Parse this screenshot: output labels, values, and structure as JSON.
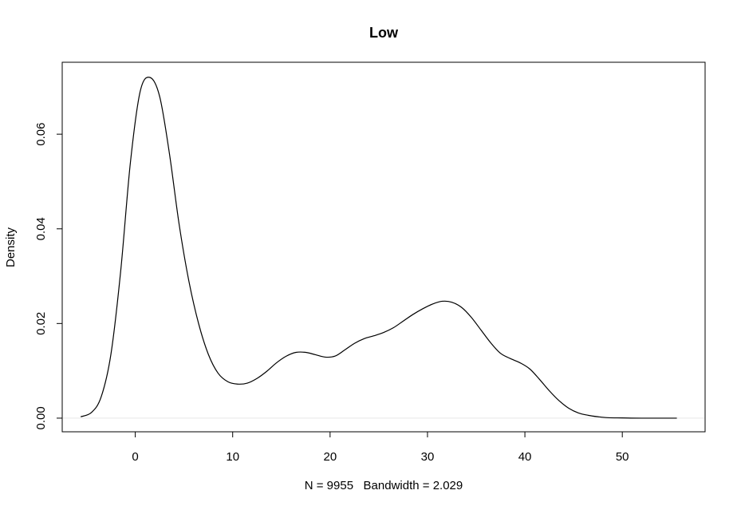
{
  "chart_data": {
    "type": "line",
    "title": "Low",
    "xlabel": "N = 9955   Bandwidth = 2.029",
    "ylabel": "Density",
    "xlim": [
      -7.5,
      58.5
    ],
    "ylim": [
      -0.00288,
      0.0752
    ],
    "x_ticks": [
      0,
      10,
      20,
      30,
      40,
      50
    ],
    "x_tick_labels": [
      "0",
      "10",
      "20",
      "30",
      "40",
      "50"
    ],
    "y_ticks": [
      0.0,
      0.02,
      0.04,
      0.06
    ],
    "y_tick_labels": [
      "0.00",
      "0.02",
      "0.04",
      "0.06"
    ],
    "baseline": 0,
    "grid": false,
    "series": [
      {
        "color": "#000000",
        "x": [
          -5.6,
          -4.5,
          -3.5,
          -2.5,
          -1.5,
          -0.5,
          0.5,
          1.5,
          2.5,
          3.5,
          4.5,
          5.5,
          6.5,
          7.5,
          8.5,
          9.5,
          10.5,
          11.5,
          12.5,
          13.5,
          14.5,
          15.5,
          16.5,
          17.5,
          18.5,
          19.5,
          20.5,
          21.5,
          22.5,
          23.5,
          24.5,
          25.5,
          26.5,
          27.5,
          28.5,
          29.5,
          30.5,
          31.5,
          32.5,
          33.5,
          34.5,
          35.5,
          36.5,
          37.5,
          38.5,
          39.5,
          40.5,
          41.5,
          42.5,
          43.5,
          44.5,
          45.5,
          46.5,
          47.5,
          48.5,
          50,
          52,
          55.6
        ],
        "y": [
          0.0003,
          0.0012,
          0.0045,
          0.0135,
          0.031,
          0.054,
          0.069,
          0.072,
          0.068,
          0.056,
          0.041,
          0.029,
          0.02,
          0.0135,
          0.0095,
          0.0077,
          0.0072,
          0.0074,
          0.0084,
          0.0099,
          0.0117,
          0.0131,
          0.0139,
          0.0139,
          0.0134,
          0.0129,
          0.0131,
          0.0144,
          0.0158,
          0.0168,
          0.0174,
          0.0181,
          0.0191,
          0.0205,
          0.0219,
          0.0231,
          0.0241,
          0.0247,
          0.0245,
          0.0234,
          0.0213,
          0.0186,
          0.0159,
          0.0137,
          0.0126,
          0.0117,
          0.0104,
          0.0082,
          0.0058,
          0.0037,
          0.0021,
          0.0011,
          0.0006,
          0.0003,
          0.0001,
          5e-05,
          0.0,
          0.0
        ]
      }
    ]
  }
}
